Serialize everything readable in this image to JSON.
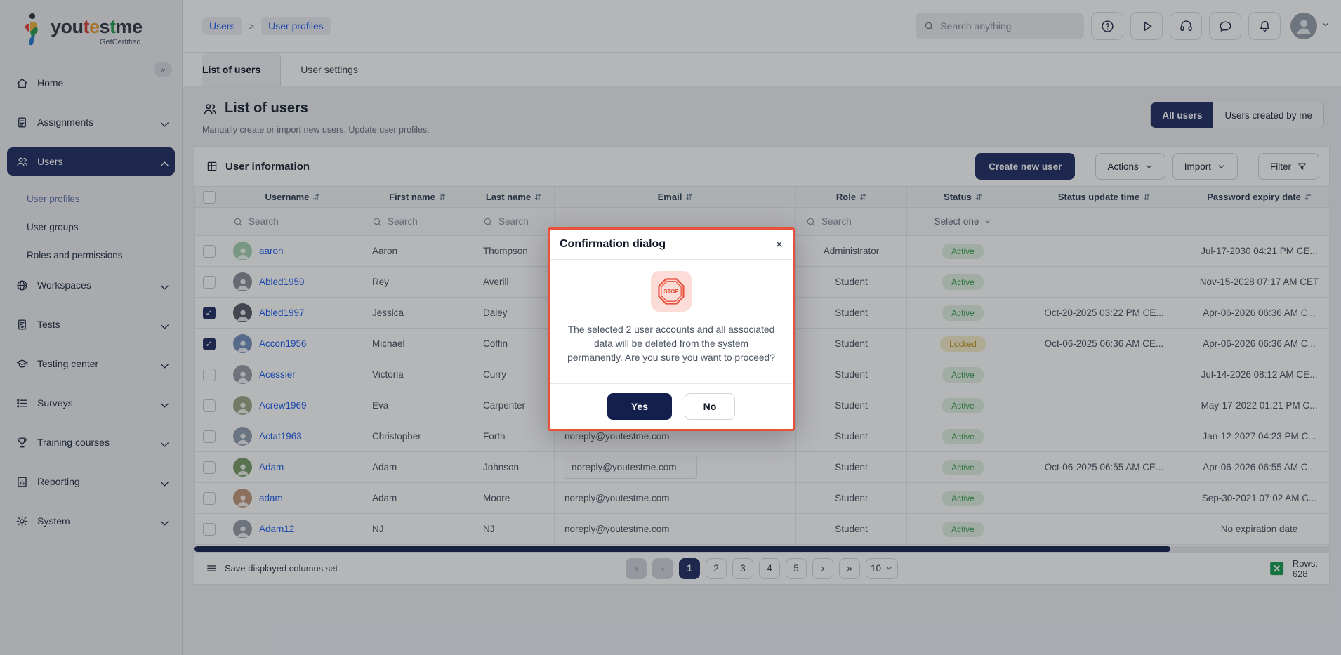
{
  "app": {
    "logo_text_parts": [
      {
        "t": "you",
        "c": "dark"
      },
      {
        "t": "t",
        "c": "red"
      },
      {
        "t": "e",
        "c": "amber"
      },
      {
        "t": "s",
        "c": "dark"
      },
      {
        "t": "t",
        "c": "green"
      },
      {
        "t": "me",
        "c": "dark"
      }
    ],
    "logo_subtext": "GetCertified"
  },
  "colors": {
    "navy": "#273467",
    "link_blue": "#2563eb",
    "active_green": "#3a9e4d",
    "locked_amber": "#c49a1f",
    "dialog_border_red": "#e8503c",
    "excel_green": "#1d9f53"
  },
  "sidebar": {
    "collapse_glyph": "«",
    "items": [
      {
        "label": "Home",
        "icon": "home-icon",
        "type": "item"
      },
      {
        "label": "Assignments",
        "icon": "assignments-icon",
        "type": "item",
        "chevron": "down"
      },
      {
        "label": "Users",
        "icon": "users-icon",
        "type": "item",
        "chevron": "up",
        "active": true
      },
      {
        "label": "User profiles",
        "type": "subitem",
        "active": true
      },
      {
        "label": "User groups",
        "type": "subitem"
      },
      {
        "label": "Roles and permissions",
        "type": "subitem"
      },
      {
        "label": "Workspaces",
        "icon": "workspaces-icon",
        "type": "item",
        "chevron": "down"
      },
      {
        "label": "Tests",
        "icon": "tests-icon",
        "type": "item",
        "chevron": "down"
      },
      {
        "label": "Testing center",
        "icon": "testing-center-icon",
        "type": "item",
        "chevron": "down"
      },
      {
        "label": "Surveys",
        "icon": "surveys-icon",
        "type": "item",
        "chevron": "down"
      },
      {
        "label": "Training courses",
        "icon": "training-courses-icon",
        "type": "item",
        "chevron": "down"
      },
      {
        "label": "Reporting",
        "icon": "reporting-icon",
        "type": "item",
        "chevron": "down"
      },
      {
        "label": "System",
        "icon": "system-icon",
        "type": "item",
        "chevron": "down"
      }
    ]
  },
  "topbar": {
    "breadcrumb": [
      {
        "label": "Users"
      },
      {
        "label": "User profiles"
      }
    ],
    "breadcrumb_separator": ">",
    "search_placeholder": "Search anything",
    "icon_buttons": [
      "help-icon",
      "play-icon",
      "support-headset-icon",
      "chat-icon",
      "notifications-bell-icon"
    ]
  },
  "tabs": [
    {
      "label": "List of users",
      "active": true
    },
    {
      "label": "User settings",
      "active": false
    }
  ],
  "page": {
    "title": "List of users",
    "subtitle": "Manually create or import new users. Update user profiles.",
    "view_toggle": [
      {
        "label": "All users",
        "active": true
      },
      {
        "label": "Users created by me",
        "active": false
      }
    ]
  },
  "panel": {
    "title": "User information",
    "create_button": "Create new user",
    "actions_button": "Actions",
    "import_button": "Import",
    "filter_button": "Filter"
  },
  "table": {
    "sort_glyph": "⇵",
    "columns": [
      {
        "key": "cb",
        "type": "checkbox"
      },
      {
        "key": "username",
        "label": "Username",
        "sortable": true,
        "filter": {
          "type": "search",
          "placeholder": "Search"
        }
      },
      {
        "key": "first_name",
        "label": "First name",
        "sortable": true,
        "filter": {
          "type": "search",
          "placeholder": "Search"
        }
      },
      {
        "key": "last_name",
        "label": "Last name",
        "sortable": true,
        "filter": {
          "type": "search",
          "placeholder": "Search"
        }
      },
      {
        "key": "email",
        "label": "Email",
        "sortable": true,
        "filter": {
          "type": "none"
        }
      },
      {
        "key": "role",
        "label": "Role",
        "sortable": true,
        "filter": {
          "type": "search",
          "placeholder": "Search"
        }
      },
      {
        "key": "status",
        "label": "Status",
        "sortable": true,
        "filter": {
          "type": "select",
          "value": "Select one"
        }
      },
      {
        "key": "status_update_time",
        "label": "Status update time",
        "sortable": true,
        "filter": {
          "type": "none"
        }
      },
      {
        "key": "password_expiry_date",
        "label": "Password expiry date",
        "sortable": true,
        "filter": {
          "type": "none"
        }
      }
    ],
    "rows": [
      {
        "username": "aaron",
        "first_name": "Aaron",
        "last_name": "Thompson",
        "email": "",
        "role": "Administrator",
        "status": "Active",
        "status_update_time": "",
        "password_expiry_date": "Jul-17-2030 04:21 PM CE...",
        "checked": false,
        "avatar_color": "#a8d5b5"
      },
      {
        "username": "Abled1959",
        "first_name": "Rey",
        "last_name": "Averill",
        "email": "",
        "role": "Student",
        "status": "Active",
        "status_update_time": "",
        "password_expiry_date": "Nov-15-2028 07:17 AM CET",
        "checked": false,
        "avatar_color": "#8d939c"
      },
      {
        "username": "Abled1997",
        "first_name": "Jessica",
        "last_name": "Daley",
        "email": "",
        "role": "Student",
        "status": "Active",
        "status_update_time": "Oct-20-2025 03:22 PM CE...",
        "password_expiry_date": "Apr-06-2026 06:36 AM C...",
        "checked": true,
        "avatar_color": "#5a5f6b"
      },
      {
        "username": "Accon1956",
        "first_name": "Michael",
        "last_name": "Coffin",
        "email": "",
        "role": "Student",
        "status": "Locked",
        "status_update_time": "Oct-06-2025 06:36 AM CE...",
        "password_expiry_date": "Apr-06-2026 06:36 AM C...",
        "checked": true,
        "avatar_color": "#7792bd"
      },
      {
        "username": "Acessier",
        "first_name": "Victoria",
        "last_name": "Curry",
        "email": "",
        "role": "Student",
        "status": "Active",
        "status_update_time": "",
        "password_expiry_date": "Jul-14-2026 08:12 AM CE...",
        "checked": false,
        "avatar_color": "#9b9fa8"
      },
      {
        "username": "Acrew1969",
        "first_name": "Eva",
        "last_name": "Carpenter",
        "email": "",
        "role": "Student",
        "status": "Active",
        "status_update_time": "",
        "password_expiry_date": "May-17-2022 01:21 PM C...",
        "checked": false,
        "avatar_color": "#a3a888"
      },
      {
        "username": "Actat1963",
        "first_name": "Christopher",
        "last_name": "Forth",
        "email": "noreply@youtestme.com",
        "role": "Student",
        "status": "Active",
        "status_update_time": "",
        "password_expiry_date": "Jan-12-2027 04:23 PM C...",
        "checked": false,
        "avatar_color": "#93a4b2"
      },
      {
        "username": "Adam",
        "first_name": "Adam",
        "last_name": "Johnson",
        "email": "noreply@youtestme.com",
        "role": "Student",
        "status": "Active",
        "status_update_time": "Oct-06-2025 06:55 AM CE...",
        "password_expiry_date": "Apr-06-2026 06:55 AM C...",
        "checked": false,
        "avatar_color": "#7ba06b",
        "email_highlight": true
      },
      {
        "username": "adam",
        "first_name": "Adam",
        "last_name": "Moore",
        "email": "noreply@youtestme.com",
        "role": "Student",
        "status": "Active",
        "status_update_time": "",
        "password_expiry_date": "Sep-30-2021 07:02 AM C...",
        "checked": false,
        "avatar_color": "#c29b7d"
      },
      {
        "username": "Adam12",
        "first_name": "NJ",
        "last_name": "NJ",
        "email": "noreply@youtestme.com",
        "role": "Student",
        "status": "Active",
        "status_update_time": "",
        "password_expiry_date": "No expiration date",
        "checked": false,
        "avatar_color": "#9aa0a9"
      }
    ]
  },
  "dialog": {
    "title": "Confirmation dialog",
    "close_glyph": "×",
    "stop_label": "STOP",
    "message": "The selected 2 user accounts and all associated data will be deleted from the system permanently. Are you sure you want to proceed?",
    "yes_label": "Yes",
    "no_label": "No"
  },
  "footer": {
    "save_columns_label": "Save displayed columns set",
    "pagination": {
      "first_glyph": "«",
      "prev_glyph": "‹",
      "next_glyph": "›",
      "last_glyph": "»",
      "pages": [
        "1",
        "2",
        "3",
        "4",
        "5"
      ],
      "active_page": "1",
      "page_size": "10"
    },
    "rows_label": "Rows: 628"
  }
}
